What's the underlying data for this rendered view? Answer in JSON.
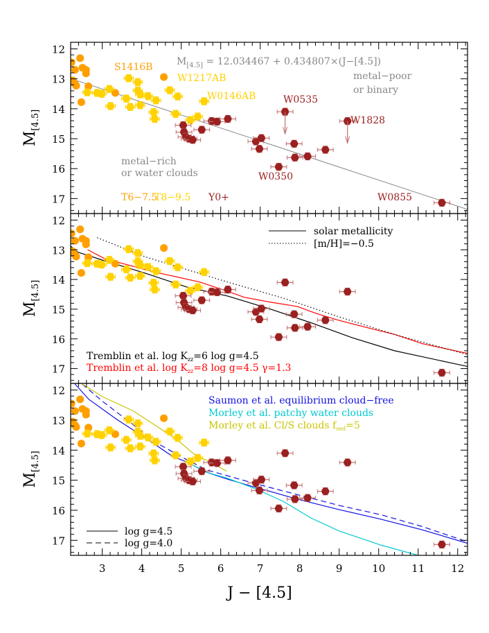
{
  "chart_data": [
    {
      "type": "scatter",
      "panel": "top",
      "xlabel": "J − [4.5]",
      "ylabel": {
        "main": "M",
        "sub": "[4.5]"
      },
      "xlim": [
        2.2,
        12.25
      ],
      "ylim": [
        11.78,
        17.5
      ],
      "y_inverted": true,
      "xticks": [
        3,
        4,
        5,
        6,
        7,
        8,
        9,
        10,
        11,
        12
      ],
      "yticks": [
        12,
        13,
        14,
        15,
        16,
        17
      ],
      "grid": false,
      "fit_line": {
        "intercept": 12.034467,
        "slope": 0.434807,
        "color": "#888888"
      },
      "equation": {
        "lhs": "M",
        "sub": "[4.5]",
        "rhs": " = 12.034467 + 0.434807×(J−[4.5])"
      },
      "annotations": {
        "metal_poor_1": "metal−poor",
        "metal_poor_2": "or binary",
        "metal_rich_1": "metal−rich",
        "metal_rich_2": "or water clouds",
        "S1416B": "S1416B",
        "W1217AB": "W1217AB",
        "W0146AB": "W0146AB",
        "W0535": "W0535",
        "W1828": "W1828",
        "W0350": "W0350",
        "W0855": "W0855"
      },
      "legend": {
        "t6": "T6−7.5",
        "t8": "T8−9.5",
        "y0": "Y0+"
      },
      "upper_limits": [
        [
          7.63,
          14.1
        ],
        [
          9.21,
          14.41
        ]
      ]
    },
    {
      "type": "line",
      "panel": "middle",
      "legend": {
        "solar": "solar metallicity",
        "metal_poor": "[m/H]=−0.5"
      },
      "series": [
        {
          "name": "Tremblin et al. log Kzz=6 log g=4.5",
          "label": {
            "a": "Tremblin et al. log K",
            "sub": "zz",
            "b": "=6 log g=4.5"
          },
          "color": "#000000",
          "dash": "solid",
          "points": [
            [
              2.2,
              12.88
            ],
            [
              2.38,
              13.08
            ],
            [
              3.01,
              13.35
            ],
            [
              4.07,
              13.78
            ],
            [
              5.13,
              14.25
            ],
            [
              6.18,
              14.56
            ],
            [
              7.24,
              14.99
            ],
            [
              8.29,
              15.46
            ],
            [
              9.35,
              15.97
            ],
            [
              10.4,
              16.4
            ],
            [
              12.25,
              16.93
            ]
          ]
        },
        {
          "name": "Tremblin et al. log Kzz=8 log g=4.5 γ=1.3",
          "label": {
            "a": "Tremblin et al. log K",
            "sub": "zz",
            "b": "=8 log g=4.5 γ=1.3"
          },
          "color": "#ff0000",
          "dash": "solid",
          "points": [
            [
              2.63,
              13.0
            ],
            [
              3.12,
              13.34
            ],
            [
              3.37,
              13.41
            ],
            [
              4.35,
              13.76
            ],
            [
              4.77,
              13.88
            ],
            [
              5.48,
              14.09
            ],
            [
              6.11,
              14.37
            ],
            [
              6.6,
              14.6
            ],
            [
              7.24,
              14.76
            ],
            [
              7.94,
              14.91
            ],
            [
              8.43,
              15.15
            ],
            [
              9.0,
              15.38
            ],
            [
              9.7,
              15.62
            ],
            [
              10.4,
              15.85
            ],
            [
              11.1,
              16.16
            ],
            [
              12.25,
              16.49
            ]
          ]
        },
        {
          "name": "[m/H]=−0.5",
          "color": "#000000",
          "dash": "dotted",
          "points": [
            [
              2.87,
              12.59
            ],
            [
              4.07,
              13.23
            ],
            [
              6.18,
              14.09
            ],
            [
              7.59,
              14.63
            ],
            [
              9.0,
              15.26
            ],
            [
              10.4,
              15.85
            ],
            [
              12.25,
              16.53
            ]
          ]
        }
      ]
    },
    {
      "type": "line",
      "panel": "bottom",
      "legend": {
        "g45": "log g=4.5",
        "g40": "log g=4.0"
      },
      "series": [
        {
          "name": "Saumon et al. equilibrium cloud−free",
          "label": {
            "a": "Saumon et al. equilibrium cloud−free"
          },
          "color": "#1010e0",
          "dash": "solid",
          "points": [
            [
              2.31,
              11.8
            ],
            [
              2.66,
              12.31
            ],
            [
              3.37,
              12.98
            ],
            [
              4.07,
              13.57
            ],
            [
              4.77,
              14.2
            ],
            [
              5.13,
              14.39
            ],
            [
              5.65,
              14.74
            ],
            [
              6.18,
              14.97
            ],
            [
              6.89,
              15.24
            ],
            [
              7.94,
              15.63
            ],
            [
              9.0,
              15.98
            ],
            [
              10.06,
              16.3
            ],
            [
              11.1,
              16.65
            ],
            [
              12.25,
              17.1
            ]
          ]
        },
        {
          "name": "Saumon et al. log g=4.0",
          "color": "#1010e0",
          "dash": "dashed",
          "points": [
            [
              2.49,
              11.8
            ],
            [
              3.02,
              12.39
            ],
            [
              3.72,
              13.09
            ],
            [
              4.43,
              13.8
            ],
            [
              5.13,
              14.31
            ],
            [
              5.65,
              14.66
            ],
            [
              6.89,
              15.12
            ],
            [
              7.94,
              15.48
            ],
            [
              9.0,
              15.84
            ],
            [
              10.06,
              16.15
            ],
            [
              11.1,
              16.54
            ],
            [
              12.25,
              17.05
            ]
          ]
        },
        {
          "name": "Morley et al. patchy water clouds",
          "label": {
            "a": "Morley et al. patchy water clouds"
          },
          "color": "#00c8d0",
          "dash": "solid",
          "points": [
            [
              5.13,
              14.39
            ],
            [
              5.65,
              14.74
            ],
            [
              6.18,
              14.94
            ],
            [
              6.89,
              15.29
            ],
            [
              7.59,
              15.71
            ],
            [
              8.29,
              16.26
            ],
            [
              9.0,
              16.69
            ],
            [
              10.06,
              17.16
            ],
            [
              11.0,
              17.5
            ]
          ]
        },
        {
          "name": "Morley et al. Cl/S clouds fsed=5",
          "label": {
            "a": "Morley et al. Cl/S clouds f",
            "sub": "sed",
            "b": "=5"
          },
          "color": "#c8c400",
          "dash": "solid",
          "points": [
            [
              2.49,
              11.8
            ],
            [
              3.02,
              12.23
            ],
            [
              3.79,
              12.7
            ],
            [
              4.43,
              13.25
            ],
            [
              4.92,
              13.68
            ],
            [
              5.34,
              14.15
            ],
            [
              5.77,
              14.42
            ],
            [
              6.15,
              14.7
            ]
          ]
        }
      ]
    }
  ],
  "points": {
    "T6-7.5": {
      "color": "#ff9f00",
      "xerr": 0.08,
      "yerr": 0.08,
      "values": [
        [
          2.22,
          12.45
        ],
        [
          2.44,
          12.31
        ],
        [
          2.31,
          12.7
        ],
        [
          2.5,
          12.63
        ],
        [
          2.59,
          12.7
        ],
        [
          2.59,
          12.82
        ],
        [
          2.25,
          13.05
        ],
        [
          2.31,
          13.17
        ],
        [
          2.34,
          13.23
        ],
        [
          2.65,
          13.25
        ],
        [
          2.47,
          13.78
        ],
        [
          3.33,
          13.47
        ],
        [
          4.56,
          12.94
        ]
      ]
    },
    "T8-9.5": {
      "color": "#ffd200",
      "xerr": 0.12,
      "yerr": 0.12,
      "values": [
        [
          2.62,
          13.45
        ],
        [
          2.87,
          13.47
        ],
        [
          2.99,
          13.5
        ],
        [
          3.18,
          13.34
        ],
        [
          3.21,
          13.91
        ],
        [
          3.67,
          12.98
        ],
        [
          3.61,
          13.66
        ],
        [
          3.71,
          13.94
        ],
        [
          3.9,
          13.11
        ],
        [
          3.9,
          13.39
        ],
        [
          3.96,
          13.52
        ],
        [
          3.96,
          13.88
        ],
        [
          4.16,
          13.58
        ],
        [
          4.36,
          13.72
        ],
        [
          4.3,
          14.11
        ],
        [
          4.33,
          14.34
        ],
        [
          4.71,
          13.38
        ],
        [
          4.91,
          13.59
        ],
        [
          5.58,
          13.75
        ],
        [
          4.86,
          14.17
        ],
        [
          5.23,
          14.38
        ],
        [
          5.42,
          14.26
        ]
      ]
    },
    "Y0+": {
      "color": "#9b2020",
      "xerr": 0.2,
      "yerr": 0.12,
      "values": [
        [
          5.05,
          14.55
        ],
        [
          5.07,
          14.78
        ],
        [
          5.12,
          14.94
        ],
        [
          5.2,
          15.0
        ],
        [
          5.29,
          15.04
        ],
        [
          5.52,
          14.7
        ],
        [
          5.77,
          14.41
        ],
        [
          5.91,
          14.43
        ],
        [
          6.18,
          14.34
        ],
        [
          6.89,
          15.09
        ],
        [
          7.03,
          14.98
        ],
        [
          6.98,
          15.34
        ],
        [
          7.63,
          14.1
        ],
        [
          9.21,
          14.41
        ],
        [
          7.86,
          15.17
        ],
        [
          7.88,
          15.63
        ],
        [
          8.2,
          15.59
        ],
        [
          8.65,
          15.37
        ],
        [
          7.47,
          15.94
        ],
        [
          11.6,
          17.14
        ]
      ]
    }
  }
}
